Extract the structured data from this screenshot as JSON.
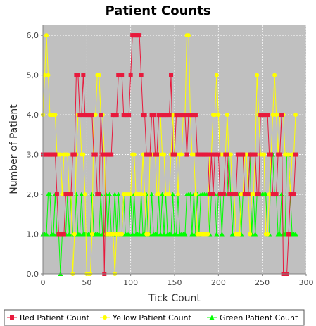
{
  "chart_data": {
    "type": "line",
    "title": "Patient Counts",
    "xlabel": "Tick Count",
    "ylabel": "Number of Patient",
    "xlim": [
      0,
      300
    ],
    "ylim": [
      0,
      6.25
    ],
    "x_ticks": [
      0,
      50,
      100,
      150,
      200,
      250,
      300
    ],
    "y_ticks": [
      0,
      1,
      2,
      3,
      4,
      5,
      6
    ],
    "y_tick_labels": [
      "0,0",
      "1,0",
      "2,0",
      "3,0",
      "4,0",
      "5,0",
      "6,0"
    ],
    "grid": true,
    "legend_position": "bottom",
    "colors": {
      "plot_background": "#c0c0c0",
      "grid": "#ffffff"
    },
    "series": [
      {
        "name": "Red Patient Count",
        "color": "#e8193c",
        "marker": "square",
        "x": [
          0,
          2,
          4,
          6,
          8,
          10,
          12,
          14,
          16,
          18,
          20,
          22,
          24,
          26,
          28,
          30,
          32,
          34,
          36,
          38,
          40,
          42,
          44,
          46,
          48,
          50,
          52,
          54,
          56,
          58,
          60,
          62,
          64,
          66,
          68,
          70,
          72,
          74,
          76,
          78,
          80,
          82,
          84,
          86,
          88,
          90,
          92,
          94,
          96,
          98,
          100,
          102,
          104,
          106,
          108,
          110,
          112,
          114,
          116,
          118,
          120,
          122,
          124,
          126,
          128,
          130,
          132,
          134,
          136,
          138,
          140,
          142,
          144,
          146,
          148,
          150,
          152,
          154,
          156,
          158,
          160,
          162,
          164,
          166,
          168,
          170,
          172,
          174,
          176,
          178,
          180,
          182,
          184,
          186,
          188,
          190,
          192,
          194,
          196,
          198,
          200,
          202,
          204,
          206,
          208,
          210,
          212,
          214,
          216,
          218,
          220,
          222,
          224,
          226,
          228,
          230,
          232,
          234,
          236,
          238,
          240,
          242,
          244,
          246,
          248,
          250,
          252,
          254,
          256,
          258,
          260,
          262,
          264,
          266,
          268,
          270,
          272,
          274,
          276,
          278,
          280,
          282,
          284,
          286,
          288
        ],
        "y": [
          3,
          3,
          3,
          3,
          3,
          3,
          3,
          3,
          2,
          1,
          1,
          1,
          1,
          2,
          2,
          2,
          2,
          3,
          3,
          5,
          5,
          4,
          4,
          5,
          4,
          4,
          4,
          4,
          4,
          3,
          3,
          2,
          2,
          4,
          3,
          0,
          3,
          3,
          3,
          3,
          4,
          4,
          4,
          5,
          5,
          5,
          4,
          4,
          4,
          4,
          5,
          6,
          6,
          6,
          6,
          6,
          5,
          4,
          4,
          3,
          3,
          3,
          4,
          4,
          3,
          3,
          4,
          4,
          4,
          4,
          4,
          4,
          4,
          5,
          3,
          3,
          4,
          4,
          4,
          4,
          4,
          4,
          3,
          4,
          4,
          4,
          4,
          4,
          3,
          3,
          3,
          3,
          3,
          3,
          3,
          2,
          3,
          2,
          3,
          3,
          3,
          2,
          2,
          2,
          3,
          3,
          2,
          2,
          2,
          2,
          2,
          3,
          3,
          3,
          3,
          2,
          2,
          2,
          3,
          3,
          3,
          3,
          2,
          2,
          4,
          4,
          4,
          4,
          4,
          3,
          3,
          2,
          2,
          2,
          3,
          3,
          4,
          0,
          0,
          0,
          1,
          2,
          2,
          2,
          3
        ]
      },
      {
        "name": "Yellow Patient Count",
        "color": "#ffff00",
        "marker": "circle",
        "x": [
          0,
          2,
          4,
          6,
          8,
          10,
          12,
          14,
          16,
          18,
          20,
          22,
          24,
          26,
          28,
          30,
          32,
          34,
          36,
          38,
          40,
          42,
          44,
          46,
          48,
          50,
          52,
          54,
          56,
          58,
          60,
          62,
          64,
          66,
          68,
          70,
          72,
          74,
          76,
          78,
          80,
          82,
          84,
          86,
          88,
          90,
          92,
          94,
          96,
          98,
          100,
          102,
          104,
          106,
          108,
          110,
          112,
          114,
          116,
          118,
          120,
          122,
          124,
          126,
          128,
          130,
          132,
          134,
          136,
          138,
          140,
          142,
          144,
          146,
          148,
          150,
          152,
          154,
          156,
          158,
          160,
          162,
          164,
          166,
          168,
          170,
          172,
          174,
          176,
          178,
          180,
          182,
          184,
          186,
          188,
          190,
          192,
          194,
          196,
          198,
          200,
          202,
          204,
          206,
          208,
          210,
          212,
          214,
          216,
          218,
          220,
          222,
          224,
          226,
          228,
          230,
          232,
          234,
          236,
          238,
          240,
          242,
          244,
          246,
          248,
          250,
          252,
          254,
          256,
          258,
          260,
          262,
          264,
          266,
          268,
          270,
          272,
          274,
          276,
          278,
          280,
          282,
          284,
          286,
          288
        ],
        "y": [
          4,
          5,
          6,
          5,
          4,
          4,
          4,
          4,
          3,
          3,
          3,
          2,
          3,
          3,
          3,
          2,
          2,
          0,
          1,
          3,
          4,
          4,
          3,
          3,
          2,
          0,
          0,
          0,
          1,
          4,
          4,
          5,
          5,
          4,
          4,
          3,
          1,
          1,
          1,
          1,
          1,
          0,
          1,
          1,
          1,
          1,
          2,
          2,
          2,
          2,
          2,
          3,
          3,
          2,
          2,
          2,
          2,
          3,
          2,
          1,
          1,
          3,
          3,
          3,
          3,
          2,
          2,
          4,
          3,
          3,
          2,
          2,
          2,
          3,
          4,
          3,
          3,
          2,
          3,
          3,
          4,
          4,
          6,
          6,
          4,
          3,
          3,
          2,
          1,
          1,
          1,
          1,
          1,
          1,
          1,
          3,
          3,
          4,
          4,
          5,
          4,
          3,
          3,
          3,
          3,
          4,
          3,
          3,
          2,
          2,
          1,
          1,
          1,
          2,
          2,
          3,
          3,
          2,
          1,
          2,
          2,
          3,
          5,
          4,
          3,
          3,
          3,
          1,
          1,
          2,
          3,
          4,
          5,
          4,
          3,
          4,
          4,
          4,
          3,
          3,
          3,
          2,
          3,
          3,
          4
        ]
      },
      {
        "name": "Green Patient Count",
        "color": "#00ff00",
        "marker": "triangle",
        "x": [
          0,
          2,
          4,
          6,
          8,
          10,
          12,
          14,
          16,
          18,
          20,
          22,
          24,
          26,
          28,
          30,
          32,
          34,
          36,
          38,
          40,
          42,
          44,
          46,
          48,
          50,
          52,
          54,
          56,
          58,
          60,
          62,
          64,
          66,
          68,
          70,
          72,
          74,
          76,
          78,
          80,
          82,
          84,
          86,
          88,
          90,
          92,
          94,
          96,
          98,
          100,
          102,
          104,
          106,
          108,
          110,
          112,
          114,
          116,
          118,
          120,
          122,
          124,
          126,
          128,
          130,
          132,
          134,
          136,
          138,
          140,
          142,
          144,
          146,
          148,
          150,
          152,
          154,
          156,
          158,
          160,
          162,
          164,
          166,
          168,
          170,
          172,
          174,
          176,
          178,
          180,
          182,
          184,
          186,
          188,
          190,
          192,
          194,
          196,
          198,
          200,
          202,
          204,
          206,
          208,
          210,
          212,
          214,
          216,
          218,
          220,
          222,
          224,
          226,
          228,
          230,
          232,
          234,
          236,
          238,
          240,
          242,
          244,
          246,
          248,
          250,
          252,
          254,
          256,
          258,
          260,
          262,
          264,
          266,
          268,
          270,
          272,
          274,
          276,
          278,
          280,
          282,
          284,
          286,
          288
        ],
        "y": [
          1,
          1,
          1,
          2,
          2,
          1,
          1,
          2,
          1,
          1,
          0,
          1,
          1,
          1,
          2,
          1,
          2,
          1,
          1,
          2,
          1,
          1,
          2,
          1,
          1,
          1,
          1,
          1,
          2,
          1,
          1,
          1,
          1,
          2,
          1,
          1,
          2,
          1,
          2,
          1,
          1,
          2,
          1,
          2,
          1,
          1,
          2,
          1,
          1,
          1,
          2,
          1,
          2,
          1,
          1,
          1,
          2,
          1,
          1,
          2,
          1,
          1,
          2,
          1,
          1,
          1,
          2,
          1,
          2,
          1,
          2,
          1,
          1,
          1,
          2,
          1,
          1,
          2,
          1,
          1,
          1,
          1,
          2,
          2,
          2,
          1,
          2,
          1,
          2,
          1,
          2,
          2,
          2,
          2,
          2,
          1,
          2,
          2,
          2,
          1,
          2,
          2,
          1,
          2,
          2,
          2,
          3,
          2,
          1,
          2,
          2,
          2,
          2,
          1,
          2,
          2,
          2,
          2,
          3,
          1,
          2,
          1,
          2,
          2,
          2,
          2,
          2,
          2,
          1,
          1,
          3,
          3,
          2,
          2,
          1,
          1,
          2,
          1,
          1,
          3,
          3,
          2,
          1,
          1,
          1
        ]
      }
    ]
  }
}
